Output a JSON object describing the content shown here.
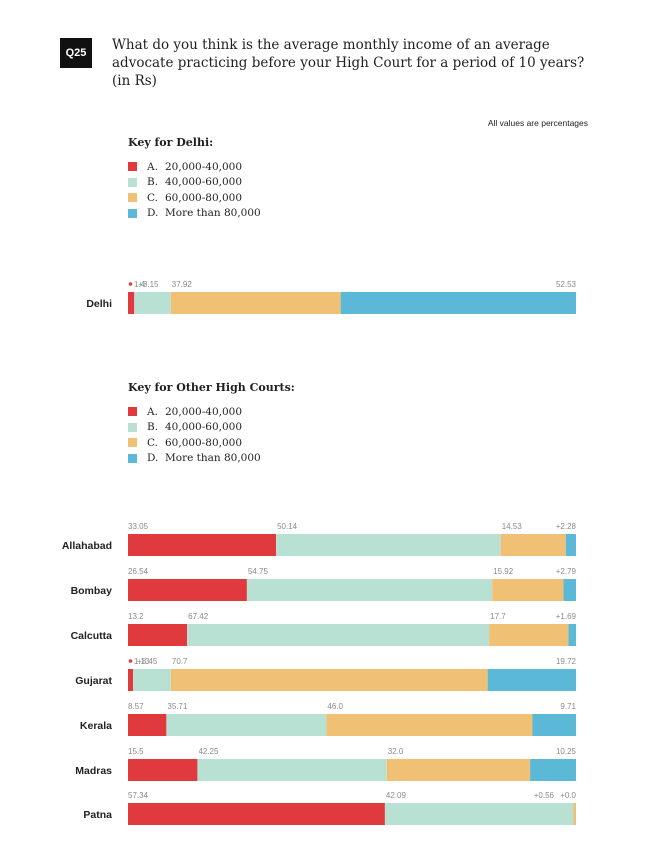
{
  "question": {
    "badge": "Q25",
    "text": "What do you think is the average monthly income of an average advocate practicing before your High Court for a period of 10 years? (in Rs)"
  },
  "note": "All values are percentages",
  "keys": [
    {
      "title": "Key for Delhi:",
      "items": [
        {
          "letter": "A.",
          "label": "20,000-40,000",
          "color": "#e03a3e"
        },
        {
          "letter": "B.",
          "label": "40,000-60,000",
          "color": "#b9e1d3"
        },
        {
          "letter": "C.",
          "label": "60,000-80,000",
          "color": "#f0c174"
        },
        {
          "letter": "D.",
          "label": "More than 80,000",
          "color": "#5bb8d6"
        }
      ]
    },
    {
      "title": "Key for Other High Courts:",
      "items": [
        {
          "letter": "A.",
          "label": "20,000-40,000",
          "color": "#e03a3e"
        },
        {
          "letter": "B.",
          "label": "40,000-60,000",
          "color": "#b9e1d3"
        },
        {
          "letter": "C.",
          "label": "60,000-80,000",
          "color": "#f0c174"
        },
        {
          "letter": "D.",
          "label": "More than 80,000",
          "color": "#5bb8d6"
        }
      ]
    }
  ],
  "chart_data": {
    "type": "bar",
    "orientation": "horizontal",
    "stacked": true,
    "xlim": [
      0,
      100
    ],
    "colors": [
      "#e03a3e",
      "#b9e1d3",
      "#f0c174",
      "#5bb8d6"
    ],
    "rows": [
      {
        "name": "Delhi",
        "values": [
          1.4,
          8.15,
          37.92,
          52.53
        ],
        "labels": [
          "1.4",
          "8.15",
          "37.92",
          "52.53"
        ]
      },
      {
        "name": "Allahabad",
        "values": [
          33.05,
          50.14,
          14.53,
          2.28
        ],
        "labels": [
          "33.05",
          "50.14",
          "14.53",
          "2.28"
        ]
      },
      {
        "name": "Bombay",
        "values": [
          26.54,
          54.75,
          15.92,
          2.79
        ],
        "labels": [
          "26.54",
          "54.75",
          "15.92",
          "2.79"
        ]
      },
      {
        "name": "Calcutta",
        "values": [
          13.2,
          67.42,
          17.7,
          1.69
        ],
        "labels": [
          "13.2",
          "67.42",
          "17.7",
          "1.69"
        ]
      },
      {
        "name": "Gujarat",
        "values": [
          1.13,
          8.45,
          70.7,
          19.72
        ],
        "labels": [
          "1.13",
          "8.45",
          "70.7",
          "19.72"
        ]
      },
      {
        "name": "Kerala",
        "values": [
          8.57,
          35.71,
          46.0,
          9.71
        ],
        "labels": [
          "8.57",
          "35.71",
          "46.0",
          "9.71"
        ]
      },
      {
        "name": "Madras",
        "values": [
          15.5,
          42.25,
          32.0,
          10.25
        ],
        "labels": [
          "15.5",
          "42.25",
          "32.0",
          "10.25"
        ]
      },
      {
        "name": "Patna",
        "values": [
          57.34,
          42.09,
          0.56,
          0.0
        ],
        "labels": [
          "57.34",
          "42.09",
          "0.56",
          "0.0"
        ]
      }
    ]
  }
}
